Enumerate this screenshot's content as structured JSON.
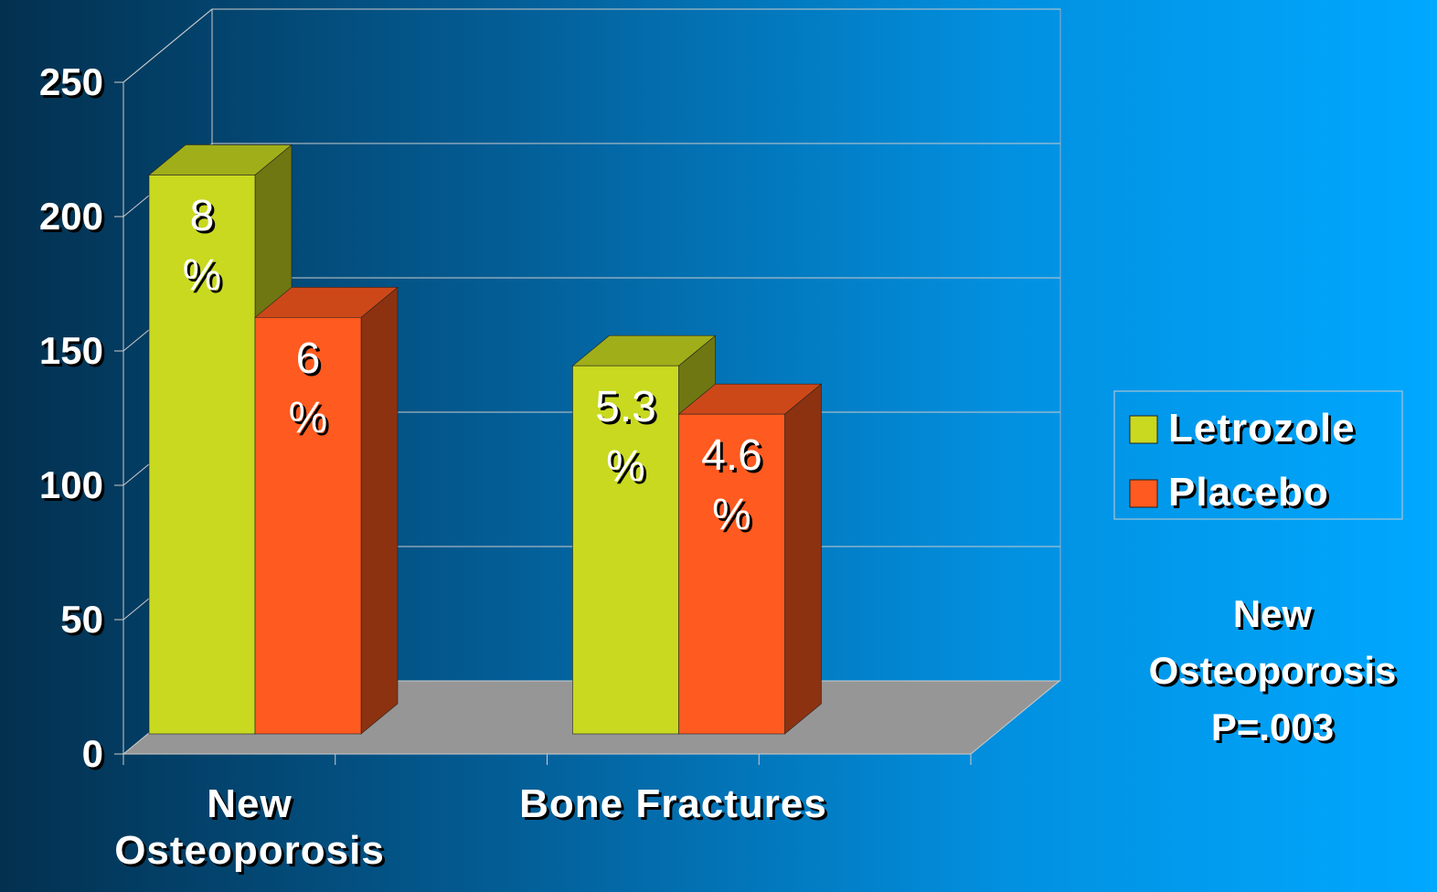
{
  "chart_data": {
    "type": "bar3d",
    "categories": [
      "New Osteoporosis",
      "Bone Fractures"
    ],
    "series": [
      {
        "name": "Letrozole",
        "color": "#c8d920",
        "values": [
          208,
          137
        ]
      },
      {
        "name": "Placebo",
        "color": "#ff5a1f",
        "values": [
          155,
          119
        ]
      }
    ],
    "bar_annotations": [
      [
        "8 %",
        "5.3 %"
      ],
      [
        "6 %",
        "4.6 %"
      ]
    ],
    "ylim": [
      0,
      250
    ],
    "yticks": [
      0,
      50,
      100,
      150,
      200,
      250
    ],
    "grid": true,
    "legend": "right",
    "note": [
      "New",
      "Osteoporosis",
      "P=.003"
    ]
  }
}
